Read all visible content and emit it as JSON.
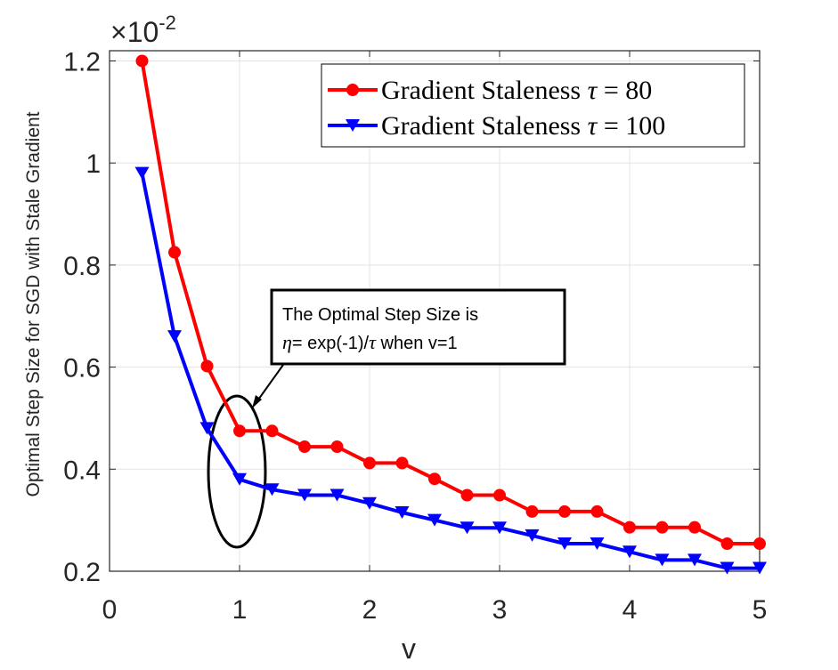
{
  "chart_data": {
    "type": "line",
    "title": "",
    "xlabel": "v",
    "ylabel": "Optimal Step Size for SGD with Stale Gradient",
    "xlim": [
      0,
      5
    ],
    "ylim": [
      0.2,
      1.22
    ],
    "x_ticks": [
      0,
      1,
      2,
      3,
      4,
      5
    ],
    "x_tick_labels": [
      "0",
      "1",
      "2",
      "3",
      "4",
      "5"
    ],
    "y_ticks": [
      0.2,
      0.4,
      0.6,
      0.8,
      1.0,
      1.2
    ],
    "y_tick_labels": [
      "0.2",
      "0.4",
      "0.6",
      "0.8",
      "1",
      "1.2"
    ],
    "y_exponent_base": "×10",
    "y_exponent_power": "-2",
    "grid": true,
    "legend_position": "top-right",
    "x": [
      0.25,
      0.5,
      0.75,
      1.0,
      1.25,
      1.5,
      1.75,
      2.0,
      2.25,
      2.5,
      2.75,
      3.0,
      3.25,
      3.5,
      3.75,
      4.0,
      4.25,
      4.5,
      4.75,
      5.0
    ],
    "series": [
      {
        "name": "Gradient Staleness τ = 80",
        "legend_prefix": "Gradient Staleness ",
        "legend_symbol": "τ",
        "legend_suffix": " = 80",
        "color": "#ff0000",
        "marker": "circle",
        "values": [
          1.2,
          0.825,
          0.602,
          0.475,
          0.475,
          0.444,
          0.444,
          0.412,
          0.412,
          0.381,
          0.349,
          0.349,
          0.317,
          0.317,
          0.317,
          0.286,
          0.286,
          0.286,
          0.254,
          0.254
        ]
      },
      {
        "name": "Gradient Staleness τ = 100",
        "legend_prefix": "Gradient Staleness ",
        "legend_symbol": "τ",
        "legend_suffix": " = 100",
        "color": "#0000ff",
        "marker": "triangle-down",
        "values": [
          0.98,
          0.66,
          0.48,
          0.38,
          0.36,
          0.349,
          0.349,
          0.333,
          0.315,
          0.3,
          0.285,
          0.285,
          0.27,
          0.254,
          0.254,
          0.238,
          0.222,
          0.222,
          0.206,
          0.206
        ]
      }
    ],
    "annotation": {
      "line1": "The Optimal Step Size is",
      "eta": "η",
      "line2_mid": "= exp(-1)/",
      "tau": "τ",
      "line2_end": " when v=1",
      "target_x": 1.0
    }
  }
}
